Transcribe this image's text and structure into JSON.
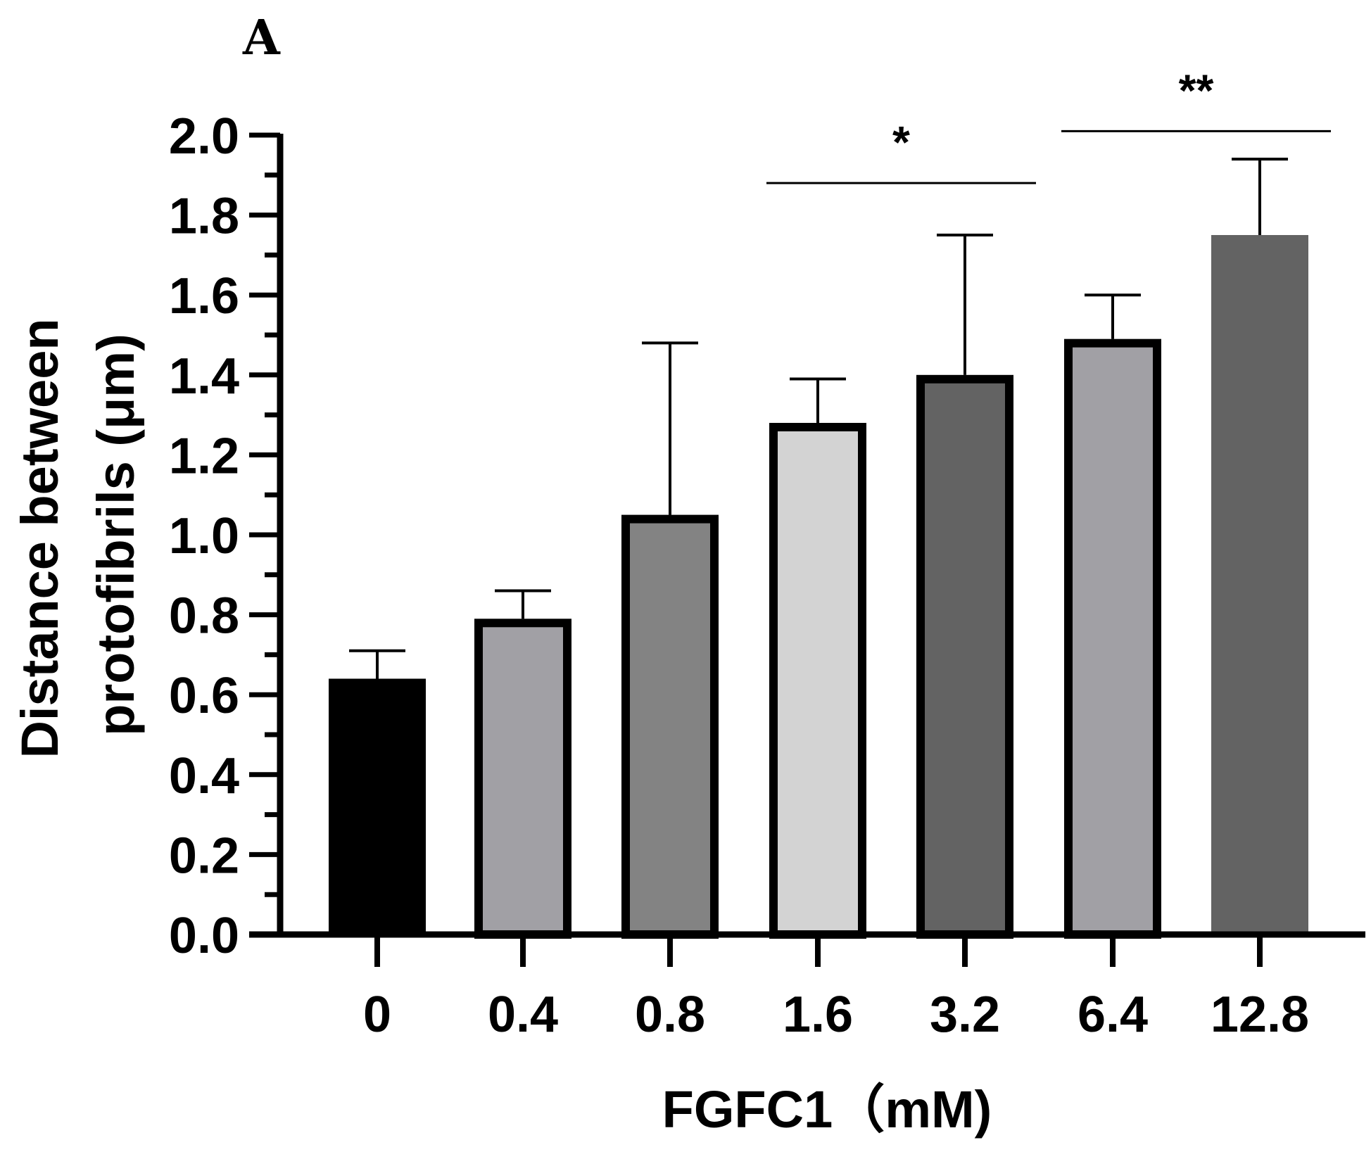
{
  "panel_label": "A",
  "chart_data": {
    "type": "bar",
    "title": "",
    "xlabel": "FGFC1（mM)",
    "ylabel_line1": "Distance between",
    "ylabel_line2": "protofibrils (μm)",
    "ylim": [
      0,
      2.0
    ],
    "yticks": [
      "0.0",
      "0.2",
      "0.4",
      "0.6",
      "0.8",
      "1.0",
      "1.2",
      "1.4",
      "1.6",
      "1.8",
      "2.0"
    ],
    "categories": [
      "0",
      "0.4",
      "0.8",
      "1.6",
      "3.2",
      "6.4",
      "12.8"
    ],
    "values": [
      0.64,
      0.79,
      1.05,
      1.28,
      1.4,
      1.49,
      1.75
    ],
    "error_upper": [
      0.71,
      0.86,
      1.48,
      1.39,
      1.75,
      1.6,
      1.94
    ],
    "bar_fill_colors": [
      "#000000",
      "#a1a0a5",
      "#838383",
      "#d3d3d3",
      "#636363",
      "#a1a0a5",
      "#636363"
    ],
    "bar_outlined": [
      false,
      true,
      true,
      true,
      true,
      true,
      false
    ],
    "significance": [
      {
        "label": "*",
        "from": "1.6",
        "to": "3.2",
        "y": 1.88
      },
      {
        "label": "**",
        "from": "6.4",
        "to": "12.8",
        "y": 2.01
      }
    ]
  }
}
